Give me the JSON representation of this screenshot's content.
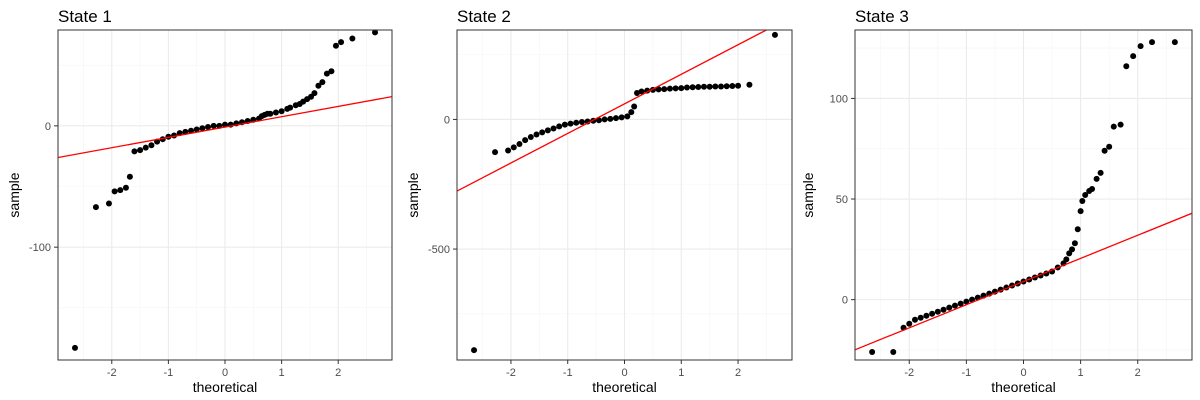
{
  "chart_data": [
    {
      "type": "scatter",
      "title": "State 1",
      "xlabel": "theoretical",
      "ylabel": "sample",
      "xlim": [
        -2.95,
        2.95
      ],
      "ylim": [
        -193,
        79
      ],
      "x_ticks": [
        -2,
        -1,
        0,
        1,
        2
      ],
      "y_ticks": [
        0,
        -100
      ],
      "grid": true,
      "reference_line": {
        "slope": 8.5,
        "intercept": -1,
        "color": "#ff0000"
      },
      "series": [
        {
          "x": [
            -2.65,
            -2.28,
            -2.05,
            -1.95,
            -1.85,
            -1.75,
            -1.68,
            -1.6,
            -1.5,
            -1.4,
            -1.3,
            -1.2,
            -1.1,
            -1.0,
            -0.9,
            -0.8,
            -0.7,
            -0.6,
            -0.5,
            -0.4,
            -0.3,
            -0.2,
            -0.1,
            0.0,
            0.1,
            0.2,
            0.3,
            0.4,
            0.5,
            0.6,
            0.65,
            0.7,
            0.75,
            0.8,
            0.9,
            1.0,
            1.1,
            1.15,
            1.25,
            1.32,
            1.38,
            1.45,
            1.52,
            1.58,
            1.65,
            1.72,
            1.8,
            1.88,
            1.96,
            2.05,
            2.25,
            2.65
          ],
          "y": [
            -183,
            -67,
            -64,
            -54,
            -53,
            -51,
            -42,
            -21,
            -20,
            -18,
            -16,
            -13,
            -11,
            -9,
            -8,
            -6,
            -5,
            -4,
            -3,
            -2,
            -1,
            0,
            0,
            1,
            1,
            2,
            3,
            4,
            5,
            6,
            8,
            9,
            10,
            10,
            11,
            12,
            14,
            15,
            17,
            18,
            20,
            22,
            24,
            27,
            33,
            36,
            43,
            45,
            66,
            69,
            72,
            77
          ]
        }
      ]
    },
    {
      "type": "scatter",
      "title": "State 2",
      "xlabel": "theoretical",
      "ylabel": "sample",
      "xlim": [
        -2.95,
        2.95
      ],
      "ylim": [
        -928,
        345
      ],
      "x_ticks": [
        -2,
        -1,
        0,
        1,
        2
      ],
      "y_ticks": [
        0,
        -500
      ],
      "grid": true,
      "reference_line": {
        "slope": 114,
        "intercept": 60,
        "color": "#ff0000"
      },
      "series": [
        {
          "x": [
            -2.65,
            -2.28,
            -2.05,
            -1.95,
            -1.85,
            -1.75,
            -1.65,
            -1.55,
            -1.45,
            -1.35,
            -1.25,
            -1.15,
            -1.05,
            -0.95,
            -0.85,
            -0.75,
            -0.65,
            -0.55,
            -0.45,
            -0.35,
            -0.25,
            -0.15,
            -0.05,
            0.05,
            0.12,
            0.17,
            0.22,
            0.3,
            0.4,
            0.5,
            0.6,
            0.7,
            0.8,
            0.9,
            1.0,
            1.1,
            1.2,
            1.3,
            1.4,
            1.5,
            1.6,
            1.7,
            1.8,
            1.9,
            2.0,
            2.2,
            2.65
          ],
          "y": [
            -890,
            -126,
            -120,
            -108,
            -95,
            -80,
            -68,
            -58,
            -50,
            -42,
            -35,
            -27,
            -20,
            -16,
            -13,
            -10,
            -8,
            -5,
            -3,
            0,
            2,
            5,
            8,
            12,
            28,
            50,
            102,
            108,
            111,
            114,
            116,
            117,
            119,
            120,
            121,
            123,
            124,
            125,
            126,
            126,
            127,
            127,
            128,
            129,
            130,
            134,
            326
          ]
        }
      ]
    },
    {
      "type": "scatter",
      "title": "State 3",
      "xlabel": "theoretical",
      "ylabel": "sample",
      "xlim": [
        -2.95,
        2.95
      ],
      "ylim": [
        -30,
        134
      ],
      "x_ticks": [
        -2,
        -1,
        0,
        1,
        2
      ],
      "y_ticks": [
        100,
        50,
        0
      ],
      "grid": true,
      "reference_line": {
        "slope": 11.5,
        "intercept": 9,
        "color": "#ff0000"
      },
      "series": [
        {
          "x": [
            -2.65,
            -2.28,
            -2.1,
            -2.0,
            -1.9,
            -1.8,
            -1.7,
            -1.6,
            -1.5,
            -1.4,
            -1.3,
            -1.2,
            -1.1,
            -1.0,
            -0.9,
            -0.8,
            -0.7,
            -0.6,
            -0.5,
            -0.4,
            -0.3,
            -0.2,
            -0.1,
            0.0,
            0.1,
            0.2,
            0.3,
            0.4,
            0.5,
            0.6,
            0.7,
            0.75,
            0.8,
            0.85,
            0.9,
            0.95,
            1.0,
            1.03,
            1.08,
            1.15,
            1.2,
            1.28,
            1.35,
            1.42,
            1.5,
            1.58,
            1.7,
            1.8,
            1.92,
            2.05,
            2.25,
            2.65
          ],
          "y": [
            -26,
            -26,
            -14,
            -12,
            -10,
            -9,
            -8,
            -7,
            -6,
            -5,
            -4,
            -3,
            -2,
            -1,
            0,
            1,
            2,
            3,
            4,
            5,
            6,
            7,
            8,
            9,
            10,
            11,
            12,
            13,
            14,
            16,
            18,
            20,
            23,
            25,
            28,
            35,
            44,
            49,
            52,
            54,
            55,
            60,
            63,
            74,
            76,
            86,
            87,
            116,
            121,
            126,
            128,
            128
          ]
        }
      ]
    }
  ]
}
